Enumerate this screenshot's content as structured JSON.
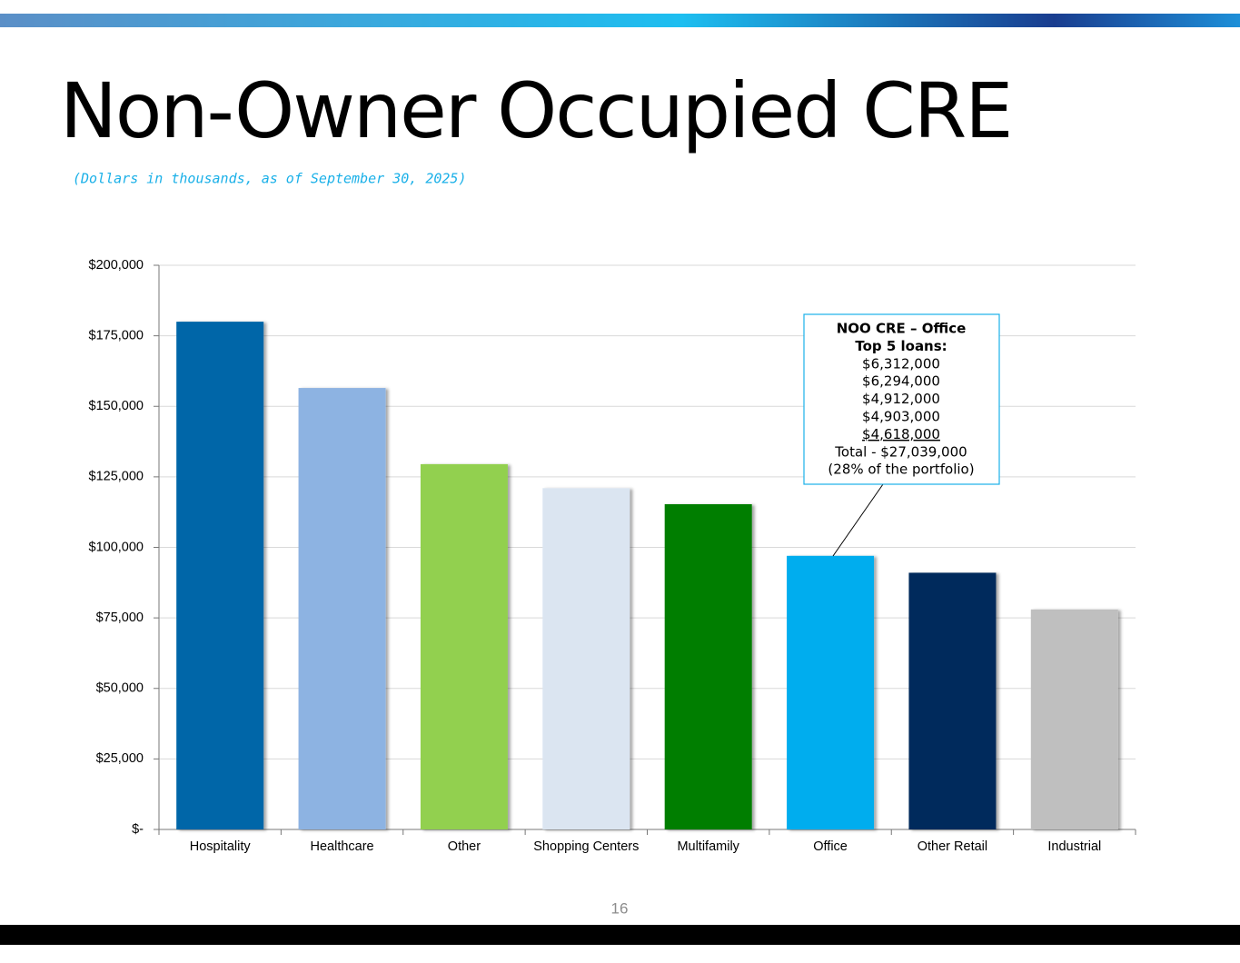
{
  "chart_data": {
    "type": "bar",
    "title": "Non-Owner Occupied CRE",
    "subtitle": "(Dollars in thousands, as of September 30, 2025)",
    "categories": [
      "Hospitality",
      "Healthcare",
      "Other",
      "Shopping Centers",
      "Multifamily",
      "Office",
      "Other Retail",
      "Industrial"
    ],
    "values": [
      180000,
      156500,
      129500,
      121000,
      115300,
      97000,
      91000,
      78000
    ],
    "colors": [
      "#0066a8",
      "#8db3e2",
      "#92d050",
      "#dbe5f1",
      "#007e00",
      "#00adee",
      "#002a5c",
      "#bfbfbf"
    ],
    "ylim": [
      0,
      200000
    ],
    "yticks": [
      {
        "value": 0,
        "label": "$-"
      },
      {
        "value": 25000,
        "label": "$25,000"
      },
      {
        "value": 50000,
        "label": "$50,000"
      },
      {
        "value": 75000,
        "label": "$75,000"
      },
      {
        "value": 100000,
        "label": "$100,000"
      },
      {
        "value": 125000,
        "label": "$125,000"
      },
      {
        "value": 150000,
        "label": "$150,000"
      },
      {
        "value": 175000,
        "label": "$175,000"
      },
      {
        "value": 200000,
        "label": "$200,000"
      }
    ],
    "grid": true,
    "annotation": {
      "title": [
        "NOO CRE – Office",
        "Top 5 loans:"
      ],
      "lines": [
        "$6,312,000",
        "$6,294,000",
        "$4,912,000",
        "$4,903,000",
        "$4,618,000",
        "Total - $27,039,000",
        "(28% of the portfolio)"
      ]
    }
  },
  "page_number": "16"
}
